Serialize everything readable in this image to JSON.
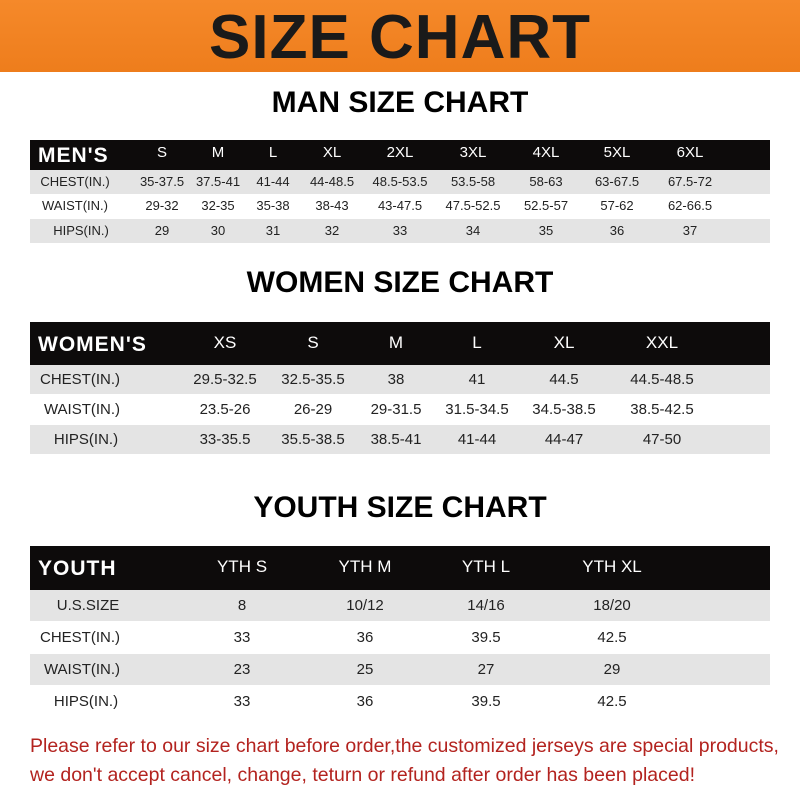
{
  "banner": {
    "title": "SIZE CHART"
  },
  "men": {
    "title": "MAN SIZE CHART",
    "header": [
      "MEN'S",
      "S",
      "M",
      "L",
      "XL",
      "2XL",
      "3XL",
      "4XL",
      "5XL",
      "6XL"
    ],
    "rows": [
      [
        "CHEST(IN.)",
        "35-37.5",
        "37.5-41",
        "41-44",
        "44-48.5",
        "48.5-53.5",
        "53.5-58",
        "58-63",
        "63-67.5",
        "67.5-72"
      ],
      [
        "WAIST(IN.)",
        "29-32",
        "32-35",
        "35-38",
        "38-43",
        "43-47.5",
        "47.5-52.5",
        "52.5-57",
        "57-62",
        "62-66.5"
      ],
      [
        "HIPS(IN.)",
        "29",
        "30",
        "31",
        "32",
        "33",
        "34",
        "35",
        "36",
        "37"
      ]
    ]
  },
  "women": {
    "title": "WOMEN SIZE CHART",
    "header": [
      "WOMEN'S",
      "XS",
      "S",
      "M",
      "L",
      "XL",
      "XXL"
    ],
    "rows": [
      [
        "CHEST(IN.)",
        "29.5-32.5",
        "32.5-35.5",
        "38",
        "41",
        "44.5",
        "44.5-48.5"
      ],
      [
        "WAIST(IN.)",
        "23.5-26",
        "26-29",
        "29-31.5",
        "31.5-34.5",
        "34.5-38.5",
        "38.5-42.5"
      ],
      [
        "HIPS(IN.)",
        "33-35.5",
        "35.5-38.5",
        "38.5-41",
        "41-44",
        "44-47",
        "47-50"
      ]
    ]
  },
  "youth": {
    "title": "YOUTH SIZE CHART",
    "header": [
      "YOUTH",
      "YTH S",
      "YTH M",
      "YTH L",
      "YTH XL"
    ],
    "rows": [
      [
        "U.S.SIZE",
        "8",
        "10/12",
        "14/16",
        "18/20"
      ],
      [
        "CHEST(IN.)",
        "33",
        "36",
        "39.5",
        "42.5"
      ],
      [
        "WAIST(IN.)",
        "23",
        "25",
        "27",
        "29"
      ],
      [
        "HIPS(IN.)",
        "33",
        "36",
        "39.5",
        "42.5"
      ]
    ]
  },
  "footer": {
    "line1": "Please refer to our size chart before order,the customized jerseys are special products,",
    "line2": "we don't accept cancel, change, teturn or refund after order has been placed!"
  },
  "colors": {
    "banner": "#ef8420",
    "header_row": "#0d0b0b",
    "stripe": "#e4e4e4",
    "notice": "#b3231f"
  }
}
